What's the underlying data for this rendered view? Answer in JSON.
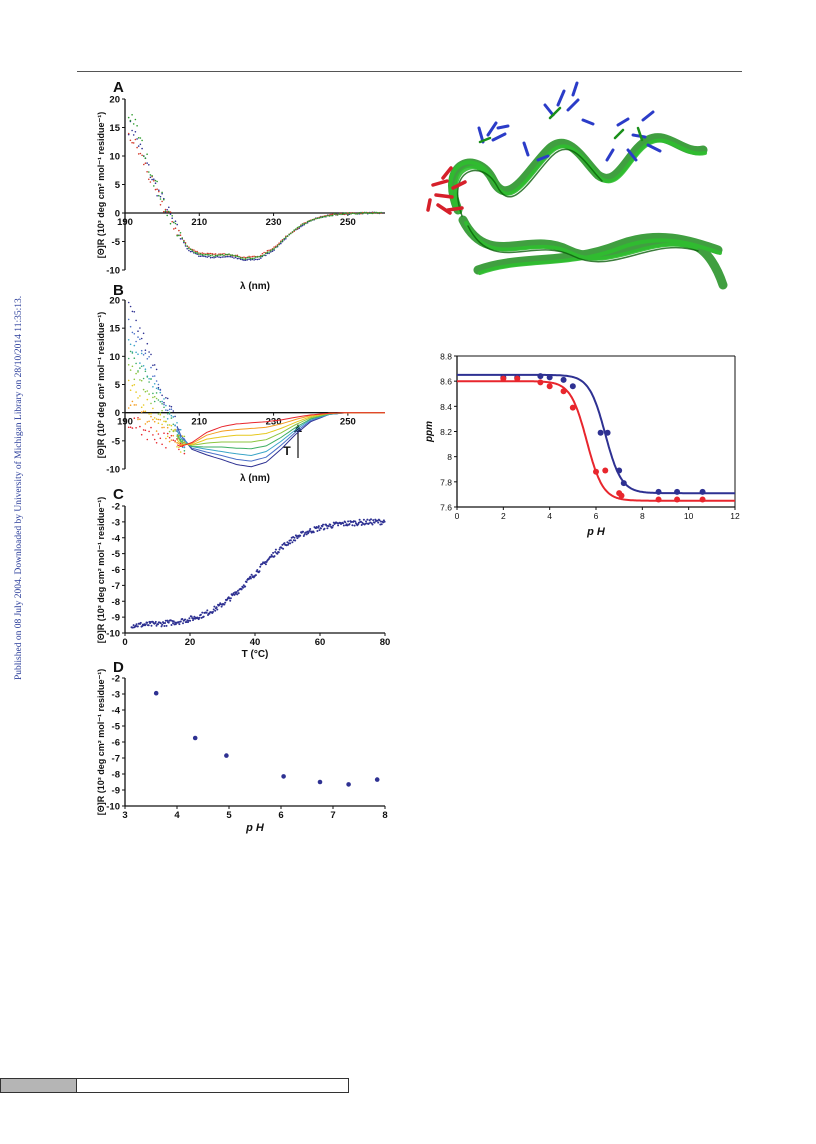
{
  "side_note": "Published on 08 July 2004. Downloaded by University of Michigan Library on 28/10/2014 11:35:13.",
  "colors": {
    "blue": "#2e3192",
    "red": "#e8262d",
    "green": "#2b9a2b"
  },
  "chart_data": [
    {
      "id": "A",
      "panel_label": "A",
      "type": "scatter",
      "xlabel": "λ (nm)",
      "ylabel": "[Θ]R (10³ deg cm² mol⁻¹ residue⁻¹)",
      "xlim": [
        190,
        260
      ],
      "ylim": [
        -10,
        20
      ],
      "xticks": [
        190,
        210,
        230,
        250
      ],
      "yticks": [
        -10,
        -5,
        0,
        5,
        10,
        15,
        20
      ],
      "series": [
        {
          "color": "#2e3192",
          "points": [
            [
              192,
              15
            ],
            [
              195,
              10
            ],
            [
              198,
              5
            ],
            [
              201,
              1
            ],
            [
              204,
              -3
            ],
            [
              207,
              -6.5
            ],
            [
              210,
              -7.5
            ],
            [
              214,
              -7.8
            ],
            [
              218,
              -7.6
            ],
            [
              222,
              -8.3
            ],
            [
              226,
              -8.1
            ],
            [
              230,
              -6.5
            ],
            [
              234,
              -4
            ],
            [
              238,
              -2
            ],
            [
              242,
              -0.8
            ],
            [
              246,
              -0.3
            ],
            [
              250,
              -0.1
            ],
            [
              255,
              0
            ],
            [
              259,
              0
            ]
          ]
        },
        {
          "color": "#d23a2a",
          "points": [
            [
              192,
              13
            ],
            [
              195,
              9
            ],
            [
              198,
              4
            ],
            [
              201,
              0.5
            ],
            [
              204,
              -3
            ],
            [
              207,
              -6
            ],
            [
              210,
              -7
            ],
            [
              214,
              -7.3
            ],
            [
              218,
              -7.2
            ],
            [
              222,
              -7.8
            ],
            [
              226,
              -7.6
            ],
            [
              230,
              -6.1
            ],
            [
              234,
              -3.8
            ],
            [
              238,
              -1.9
            ],
            [
              242,
              -0.8
            ],
            [
              246,
              -0.3
            ],
            [
              250,
              -0.1
            ],
            [
              255,
              0
            ],
            [
              259,
              0
            ]
          ]
        },
        {
          "color": "#2b9a2b",
          "points": [
            [
              192,
              17
            ],
            [
              195,
              11
            ],
            [
              198,
              5.5
            ],
            [
              201,
              1
            ],
            [
              204,
              -3
            ],
            [
              207,
              -6.2
            ],
            [
              210,
              -7.2
            ],
            [
              214,
              -7.5
            ],
            [
              218,
              -7.3
            ],
            [
              222,
              -8
            ],
            [
              226,
              -7.8
            ],
            [
              230,
              -6.3
            ],
            [
              234,
              -3.9
            ],
            [
              238,
              -1.9
            ],
            [
              242,
              -0.8
            ],
            [
              246,
              -0.3
            ],
            [
              250,
              -0.1
            ],
            [
              255,
              0
            ],
            [
              259,
              0
            ]
          ]
        }
      ]
    },
    {
      "id": "B",
      "panel_label": "B",
      "type": "line",
      "xlabel": "λ (nm)",
      "ylabel": "[Θ]R (10³ deg cm² mol⁻¹ residue⁻¹)",
      "annotation": "T",
      "xlim": [
        190,
        260
      ],
      "ylim": [
        -10,
        20
      ],
      "xticks": [
        190,
        210,
        230,
        250
      ],
      "yticks": [
        -10,
        -5,
        0,
        5,
        10,
        15,
        20
      ],
      "x": [
        190,
        195,
        200,
        205,
        208,
        212,
        216,
        220,
        224,
        228,
        232,
        236,
        240,
        245,
        250,
        255,
        260
      ],
      "series": [
        {
          "color": "#2e3192",
          "values": [
            20,
            13,
            4,
            -4,
            -6.5,
            -7.5,
            -8.3,
            -9.2,
            -9.6,
            -8.8,
            -6.5,
            -3.8,
            -1.6,
            -0.3,
            0,
            0,
            0
          ]
        },
        {
          "color": "#4a6fc8",
          "values": [
            17,
            11,
            3,
            -4,
            -6.3,
            -7,
            -7.6,
            -8.3,
            -8.6,
            -7.9,
            -5.8,
            -3.4,
            -1.4,
            -0.3,
            0,
            0,
            0
          ]
        },
        {
          "color": "#3aa5c8",
          "values": [
            14,
            9,
            2,
            -4.5,
            -6,
            -6.5,
            -6.9,
            -7.3,
            -7.6,
            -6.9,
            -5.1,
            -3,
            -1.2,
            -0.3,
            0,
            0,
            0
          ]
        },
        {
          "color": "#3cae62",
          "values": [
            11,
            7,
            1,
            -5,
            -6,
            -6.1,
            -6.1,
            -6.3,
            -6.4,
            -5.9,
            -4.4,
            -2.6,
            -1.1,
            -0.2,
            0,
            0,
            0
          ]
        },
        {
          "color": "#8cc63f",
          "values": [
            8,
            5,
            0,
            -5.2,
            -5.8,
            -5.4,
            -5.2,
            -5.2,
            -5.2,
            -4.8,
            -3.6,
            -2.1,
            -0.9,
            -0.2,
            0,
            0,
            0
          ]
        },
        {
          "color": "#e6c81e",
          "values": [
            5,
            2,
            -1.5,
            -5.6,
            -5.7,
            -4.7,
            -4.3,
            -4,
            -4,
            -3.7,
            -2.8,
            -1.7,
            -0.7,
            -0.1,
            0,
            0,
            0
          ]
        },
        {
          "color": "#f39c1f",
          "values": [
            2,
            -0.5,
            -3,
            -5.8,
            -5.5,
            -4,
            -3.3,
            -3,
            -2.8,
            -2.6,
            -2,
            -1.2,
            -0.5,
            -0.1,
            0,
            0,
            0
          ]
        },
        {
          "color": "#e8262d",
          "values": [
            -1,
            -3,
            -4.5,
            -6,
            -5.3,
            -3.5,
            -2.5,
            -2,
            -1.8,
            -1.6,
            -1.3,
            -0.8,
            -0.4,
            -0.1,
            0,
            0,
            0
          ]
        }
      ]
    },
    {
      "id": "C",
      "panel_label": "C",
      "type": "scatter",
      "xlabel": "T (°C)",
      "ylabel": "[Θ]R (10³ deg cm² mol⁻¹ residue⁻¹)",
      "xlim": [
        0,
        80
      ],
      "ylim": [
        -10,
        -2
      ],
      "xticks": [
        0,
        20,
        40,
        60,
        80
      ],
      "yticks": [
        -10,
        -9,
        -8,
        -7,
        -6,
        -5,
        -4,
        -3,
        -2
      ],
      "sigmoid": {
        "lower": -9.55,
        "upper": -2.95,
        "midpoint": 40,
        "width": 7.5
      },
      "color": "#2e3192"
    },
    {
      "id": "D",
      "panel_label": "D",
      "type": "scatter",
      "xlabel": "p H",
      "ylabel": "[Θ]R (10³ deg cm² mol⁻¹ residue⁻¹)",
      "xlim": [
        3,
        8
      ],
      "ylim": [
        -10,
        -2
      ],
      "xticks": [
        3,
        4,
        5,
        6,
        7,
        8
      ],
      "yticks": [
        -10,
        -9,
        -8,
        -7,
        -6,
        -5,
        -4,
        -3,
        -2
      ],
      "x": [
        3.6,
        4.35,
        4.95,
        6.05,
        6.75,
        7.3,
        7.85
      ],
      "y": [
        -2.95,
        -5.75,
        -6.85,
        -8.15,
        -8.5,
        -8.65,
        -8.35
      ],
      "color": "#2e3192"
    },
    {
      "id": "E",
      "type": "scatter",
      "xlabel": "p H",
      "ylabel": "ppm",
      "xlim": [
        0,
        12
      ],
      "ylim": [
        7.6,
        8.8
      ],
      "xticks": [
        0,
        2,
        4,
        6,
        8,
        10,
        12
      ],
      "yticks": [
        7.6,
        7.8,
        8,
        8.2,
        8.4,
        8.6,
        8.8
      ],
      "series": [
        {
          "color": "#2e3192",
          "x": [
            2,
            2.6,
            3.6,
            4.0,
            4.6,
            5.0,
            6.2,
            6.5,
            7.0,
            7.2,
            8.7,
            9.5,
            10.6
          ],
          "y": [
            8.63,
            8.63,
            8.64,
            8.63,
            8.61,
            8.56,
            8.19,
            8.19,
            7.89,
            7.79,
            7.72,
            7.72,
            7.72
          ],
          "fit": {
            "lower": 7.71,
            "upper": 8.65,
            "midpoint": 6.4,
            "width": 0.35
          }
        },
        {
          "color": "#e8262d",
          "x": [
            2,
            2.6,
            3.6,
            4.0,
            4.6,
            5.0,
            6.0,
            6.4,
            7.0,
            7.1,
            8.7,
            9.5,
            10.6
          ],
          "y": [
            8.62,
            8.62,
            8.59,
            8.56,
            8.52,
            8.39,
            7.88,
            7.89,
            7.71,
            7.69,
            7.66,
            7.66,
            7.66
          ],
          "fit": {
            "lower": 7.65,
            "upper": 8.6,
            "midpoint": 5.6,
            "width": 0.35
          }
        }
      ]
    }
  ]
}
